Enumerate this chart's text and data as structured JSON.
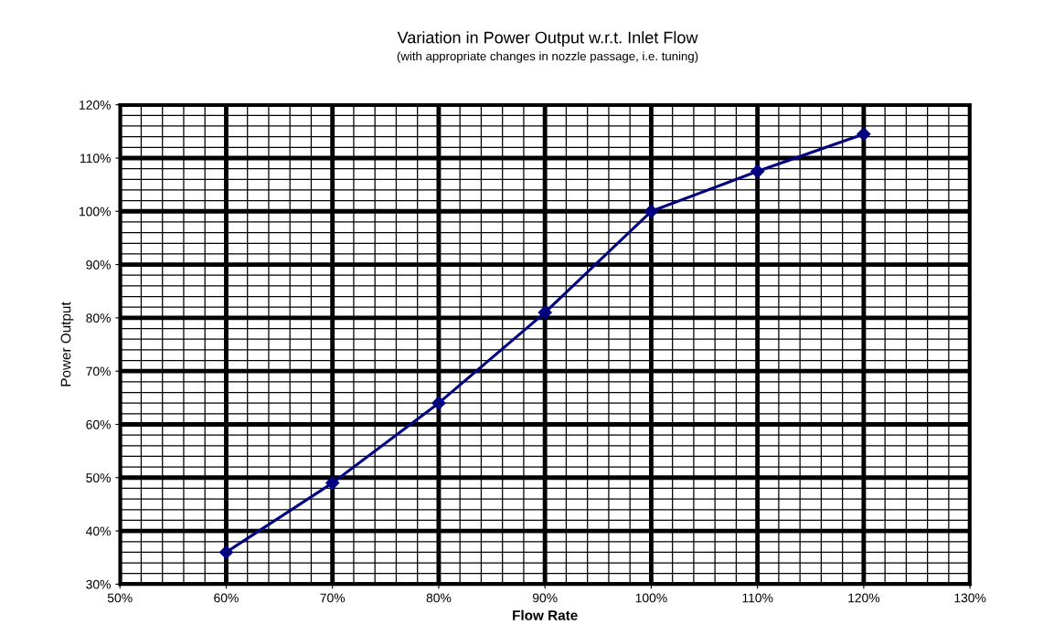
{
  "chart_data": {
    "type": "line",
    "title": "Variation in Power Output w.r.t. Inlet Flow",
    "subtitle": "(with appropriate changes in nozzle passage, i.e. tuning)",
    "xlabel": "Flow Rate",
    "ylabel": "Power Output",
    "x": [
      60,
      70,
      80,
      90,
      100,
      110,
      120
    ],
    "series": [
      {
        "color": "#000080",
        "values": [
          36,
          49,
          64,
          81,
          100,
          107.5,
          114.5
        ]
      }
    ],
    "xlim": [
      50,
      130
    ],
    "xticks": [
      {
        "value": 50,
        "label": "50%"
      },
      {
        "value": 60,
        "label": "60%"
      },
      {
        "value": 70,
        "label": "70%"
      },
      {
        "value": 80,
        "label": "80%"
      },
      {
        "value": 90,
        "label": "90%"
      },
      {
        "value": 100,
        "label": "100%"
      },
      {
        "value": 110,
        "label": "110%"
      },
      {
        "value": 120,
        "label": "120%"
      },
      {
        "value": 130,
        "label": "130%"
      }
    ],
    "ylim": [
      30,
      120
    ],
    "yticks": [
      {
        "value": 30,
        "label": "30%"
      },
      {
        "value": 40,
        "label": "40%"
      },
      {
        "value": 50,
        "label": "50%"
      },
      {
        "value": 60,
        "label": "60%"
      },
      {
        "value": 70,
        "label": "70%"
      },
      {
        "value": 80,
        "label": "80%"
      },
      {
        "value": 90,
        "label": "90%"
      },
      {
        "value": 100,
        "label": "100%"
      },
      {
        "value": 110,
        "label": "110%"
      },
      {
        "value": 120,
        "label": "120%"
      }
    ],
    "grid": true,
    "marker": "diamond",
    "line_style": "solid"
  }
}
